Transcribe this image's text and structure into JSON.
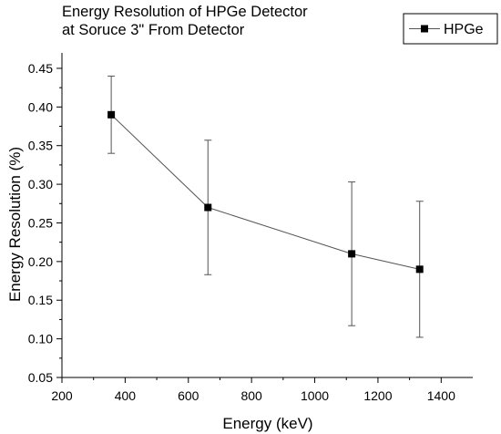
{
  "chart_data": {
    "type": "line",
    "title_lines": [
      "Energy Resolution of HPGe Detector",
      "at Soruce 3\" From Detector"
    ],
    "xlabel": "Energy (keV)",
    "ylabel": "Energy Resolution (%)",
    "xlim": [
      200,
      1500
    ],
    "ylim": [
      0.05,
      0.47
    ],
    "x_ticks": [
      200,
      400,
      600,
      800,
      1000,
      1200,
      1400
    ],
    "y_ticks": [
      0.05,
      0.1,
      0.15,
      0.2,
      0.25,
      0.3,
      0.35,
      0.4,
      0.45
    ],
    "x_tick_labels": [
      "200",
      "400",
      "600",
      "800",
      "1000",
      "1200",
      "1400"
    ],
    "y_tick_labels": [
      "0.05",
      "0.10",
      "0.15",
      "0.20",
      "0.25",
      "0.30",
      "0.35",
      "0.40",
      "0.45"
    ],
    "grid": false,
    "legend": {
      "position": "top-right",
      "entries": [
        "HPGe"
      ]
    },
    "series": [
      {
        "name": "HPGe",
        "marker": "square",
        "color": "#000000",
        "line_color": "#555555",
        "points": [
          {
            "x": 356,
            "y": 0.39,
            "err_low": 0.34,
            "err_high": 0.44
          },
          {
            "x": 662,
            "y": 0.27,
            "err_low": 0.183,
            "err_high": 0.357
          },
          {
            "x": 1117,
            "y": 0.21,
            "err_low": 0.117,
            "err_high": 0.303
          },
          {
            "x": 1332,
            "y": 0.19,
            "err_low": 0.102,
            "err_high": 0.278
          }
        ]
      }
    ]
  }
}
